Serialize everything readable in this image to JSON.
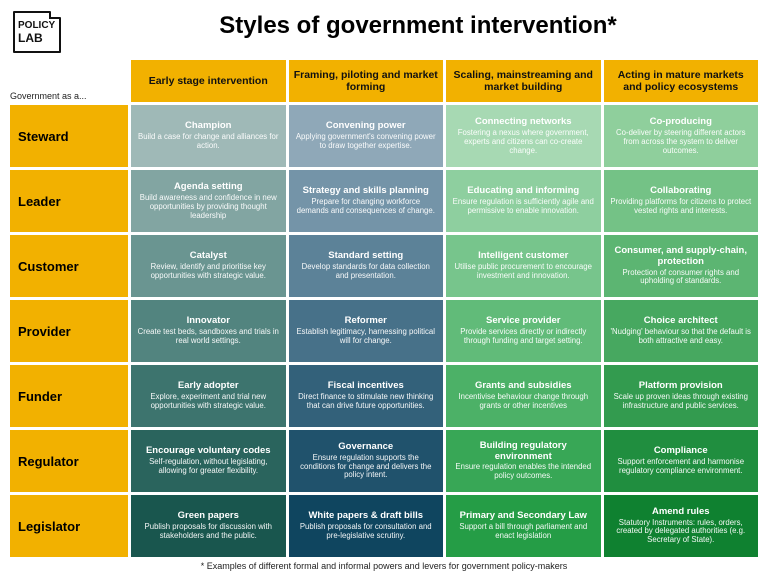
{
  "title": "Styles of government intervention*",
  "footnote": "* Examples of different formal and informal powers and levers for government policy-makers",
  "row_intro": "Government as a...",
  "logo_top": "POLICY",
  "logo_bottom": "LAB",
  "col_header_bg": "#f2b100",
  "row_label_bg": "#f2b100",
  "columns": [
    {
      "label": "Early stage intervention"
    },
    {
      "label": "Framing, piloting and market forming"
    },
    {
      "label": "Scaling, mainstreaming and market building"
    },
    {
      "label": "Acting in mature markets and policy ecosystems"
    }
  ],
  "col_colors": [
    [
      "#9fb9b7",
      "#82a5a2",
      "#6a9591",
      "#52847f",
      "#3d746e",
      "#2a645d",
      "#19564e"
    ],
    [
      "#8fa8b8",
      "#7494a8",
      "#5c8298",
      "#477189",
      "#33617a",
      "#20526c",
      "#0f455f"
    ],
    [
      "#a7d9b3",
      "#8ecf9f",
      "#77c58c",
      "#61bb79",
      "#4cb167",
      "#38a756",
      "#259d46"
    ],
    [
      "#8fcf9c",
      "#74c286",
      "#5cb572",
      "#47a860",
      "#339b4f",
      "#208e3f",
      "#0f8130"
    ]
  ],
  "rows": [
    {
      "label": "Steward",
      "cells": [
        {
          "title": "Champion",
          "desc": "Build a case for change and alliances for action."
        },
        {
          "title": "Convening power",
          "desc": "Applying government's convening power to draw together expertise."
        },
        {
          "title": "Connecting networks",
          "desc": "Fostering a nexus where government, experts and citizens can co-create change."
        },
        {
          "title": "Co-producing",
          "desc": "Co-deliver by steering different actors from across the system to deliver outcomes."
        }
      ]
    },
    {
      "label": "Leader",
      "cells": [
        {
          "title": "Agenda setting",
          "desc": "Build awareness and confidence in new opportunities by providing thought leadership"
        },
        {
          "title": "Strategy and skills planning",
          "desc": "Prepare for changing workforce demands and consequences of change."
        },
        {
          "title": "Educating and informing",
          "desc": "Ensure regulation is sufficiently agile and permissive to enable innovation."
        },
        {
          "title": "Collaborating",
          "desc": "Providing platforms for citizens to protect vested rights and interests."
        }
      ]
    },
    {
      "label": "Customer",
      "cells": [
        {
          "title": "Catalyst",
          "desc": "Review, identify and prioritise key opportunities with strategic value."
        },
        {
          "title": "Standard setting",
          "desc": "Develop standards for data collection and presentation."
        },
        {
          "title": "Intelligent customer",
          "desc": "Utilise public procurement to encourage investment and innovation."
        },
        {
          "title": "Consumer, and supply-chain, protection",
          "desc": "Protection of consumer rights and upholding of standards."
        }
      ]
    },
    {
      "label": "Provider",
      "cells": [
        {
          "title": "Innovator",
          "desc": "Create test beds, sandboxes and trials in real world settings."
        },
        {
          "title": "Reformer",
          "desc": "Establish legitimacy, harnessing political will for change."
        },
        {
          "title": "Service provider",
          "desc": "Provide services directly or indirectly through funding and target setting."
        },
        {
          "title": "Choice architect",
          "desc": "'Nudging' behaviour so that the default is both attractive and easy."
        }
      ]
    },
    {
      "label": "Funder",
      "cells": [
        {
          "title": "Early adopter",
          "desc": "Explore, experiment and trial new opportunities with strategic value."
        },
        {
          "title": "Fiscal incentives",
          "desc": "Direct finance to stimulate new thinking that can drive future opportunities."
        },
        {
          "title": "Grants and subsidies",
          "desc": "Incentivise behaviour change through grants or other incentives"
        },
        {
          "title": "Platform provision",
          "desc": "Scale up proven ideas through existing infrastructure and public services."
        }
      ]
    },
    {
      "label": "Regulator",
      "cells": [
        {
          "title": "Encourage voluntary codes",
          "desc": "Self-regulation, without legislating, allowing for greater flexibility."
        },
        {
          "title": "Governance",
          "desc": "Ensure regulation supports the conditions for change and delivers the policy intent."
        },
        {
          "title": "Building regulatory environment",
          "desc": "Ensure regulation enables the intended policy outcomes."
        },
        {
          "title": "Compliance",
          "desc": "Support enforcement and harmonise regulatory compliance environment."
        }
      ]
    },
    {
      "label": "Legislator",
      "cells": [
        {
          "title": "Green papers",
          "desc": "Publish proposals for discussion with stakeholders and the public."
        },
        {
          "title": "White papers & draft bills",
          "desc": "Publish proposals for consultation and pre-legislative scrutiny."
        },
        {
          "title": "Primary and Secondary Law",
          "desc": "Support a bill through parliament and enact legislation"
        },
        {
          "title": "Amend rules",
          "desc": "Statutory Instruments: rules, orders, created by delegated authorities (e.g. Secretary of State)."
        }
      ]
    }
  ]
}
